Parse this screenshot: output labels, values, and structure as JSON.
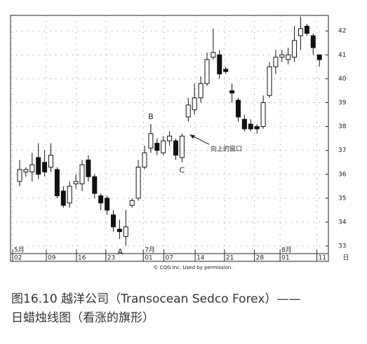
{
  "chart_data": {
    "type": "candlestick",
    "open": [
      35.7,
      36.1,
      36.1,
      36.7,
      36.5,
      36.3,
      36.2,
      35.3,
      34.8,
      35.6,
      35.6,
      36.6,
      35.9,
      35.1,
      35.0,
      34.3,
      33.7,
      33.4,
      34.7,
      35.0,
      36.3,
      37.1,
      37.3,
      36.9,
      37.4,
      37.4,
      36.7,
      38.4,
      38.7,
      39.2,
      39.8,
      40.9,
      41.0,
      40.4,
      39.5,
      39.1,
      38.3,
      38.1,
      38.0,
      38.0,
      39.3,
      40.5,
      40.9,
      40.8,
      40.9,
      41.8,
      42.2,
      41.8,
      41.0
    ],
    "high": [
      36.6,
      36.3,
      36.9,
      37.3,
      37.0,
      37.3,
      36.3,
      35.5,
      35.7,
      36.0,
      36.6,
      36.8,
      36.0,
      35.2,
      35.1,
      34.5,
      34.1,
      34.5,
      35.0,
      36.6,
      37.2,
      38.1,
      37.5,
      37.6,
      37.8,
      37.5,
      37.7,
      39.2,
      39.8,
      40.1,
      41.1,
      42.1,
      41.2,
      40.5,
      39.8,
      39.2,
      38.5,
      38.3,
      38.1,
      39.3,
      40.7,
      41.2,
      41.2,
      41.3,
      42.2,
      42.6,
      42.3,
      41.9,
      41.0
    ],
    "low": [
      35.5,
      35.9,
      35.7,
      35.8,
      35.9,
      36.1,
      35.0,
      34.6,
      34.6,
      35.4,
      35.3,
      35.7,
      35.0,
      34.5,
      34.3,
      33.6,
      33.3,
      33.0,
      34.6,
      34.9,
      36.2,
      36.9,
      36.8,
      36.8,
      37.2,
      36.6,
      36.5,
      38.2,
      38.5,
      39.0,
      39.7,
      40.8,
      40.0,
      40.2,
      39.0,
      38.2,
      37.8,
      37.8,
      37.7,
      37.9,
      39.2,
      40.2,
      40.7,
      40.6,
      40.7,
      41.2,
      41.8,
      41.0,
      40.5
    ],
    "close": [
      36.2,
      36.2,
      36.4,
      36.0,
      36.1,
      36.8,
      35.1,
      34.7,
      35.5,
      35.7,
      36.4,
      35.9,
      35.2,
      34.8,
      34.5,
      33.8,
      33.6,
      33.8,
      34.9,
      36.3,
      36.9,
      37.7,
      37.0,
      37.4,
      37.6,
      36.8,
      37.6,
      38.9,
      39.2,
      39.8,
      40.8,
      41.1,
      40.2,
      40.3,
      39.4,
      38.4,
      37.9,
      37.9,
      37.9,
      39.0,
      40.5,
      40.9,
      41.0,
      41.0,
      41.6,
      42.1,
      41.9,
      41.3,
      40.8
    ],
    "ylim": [
      32.68,
      42.65
    ],
    "yticks": [
      33,
      34,
      35,
      36,
      37,
      38,
      39,
      40,
      41,
      42
    ],
    "xlim": [
      -1.46,
      49.44
    ],
    "xticks": [
      {
        "value": -1.12,
        "label": "02"
      },
      {
        "value": 4.27,
        "label": "09"
      },
      {
        "value": 9.1,
        "label": "16"
      },
      {
        "value": 13.8,
        "label": "23"
      },
      {
        "value": 19.8,
        "label": "01"
      },
      {
        "value": 23.1,
        "label": "07"
      },
      {
        "value": 28.1,
        "label": "14"
      },
      {
        "value": 32.8,
        "label": "21"
      },
      {
        "value": 37.6,
        "label": "28"
      },
      {
        "value": 41.7,
        "label": "01"
      },
      {
        "value": 47.6,
        "label": "11"
      }
    ],
    "x_unit": "日",
    "month_labels": [
      "5月",
      "7月",
      "8月"
    ],
    "annotations": [
      "A",
      "B",
      "C",
      "向上的窗口"
    ],
    "grid": true,
    "credit": "© CQG Inc. Used by permission."
  },
  "caption": [
    "图16.10 越洋公司（Transocean Sedco Forex）——",
    "日蜡烛线图（看涨的旗形）"
  ]
}
